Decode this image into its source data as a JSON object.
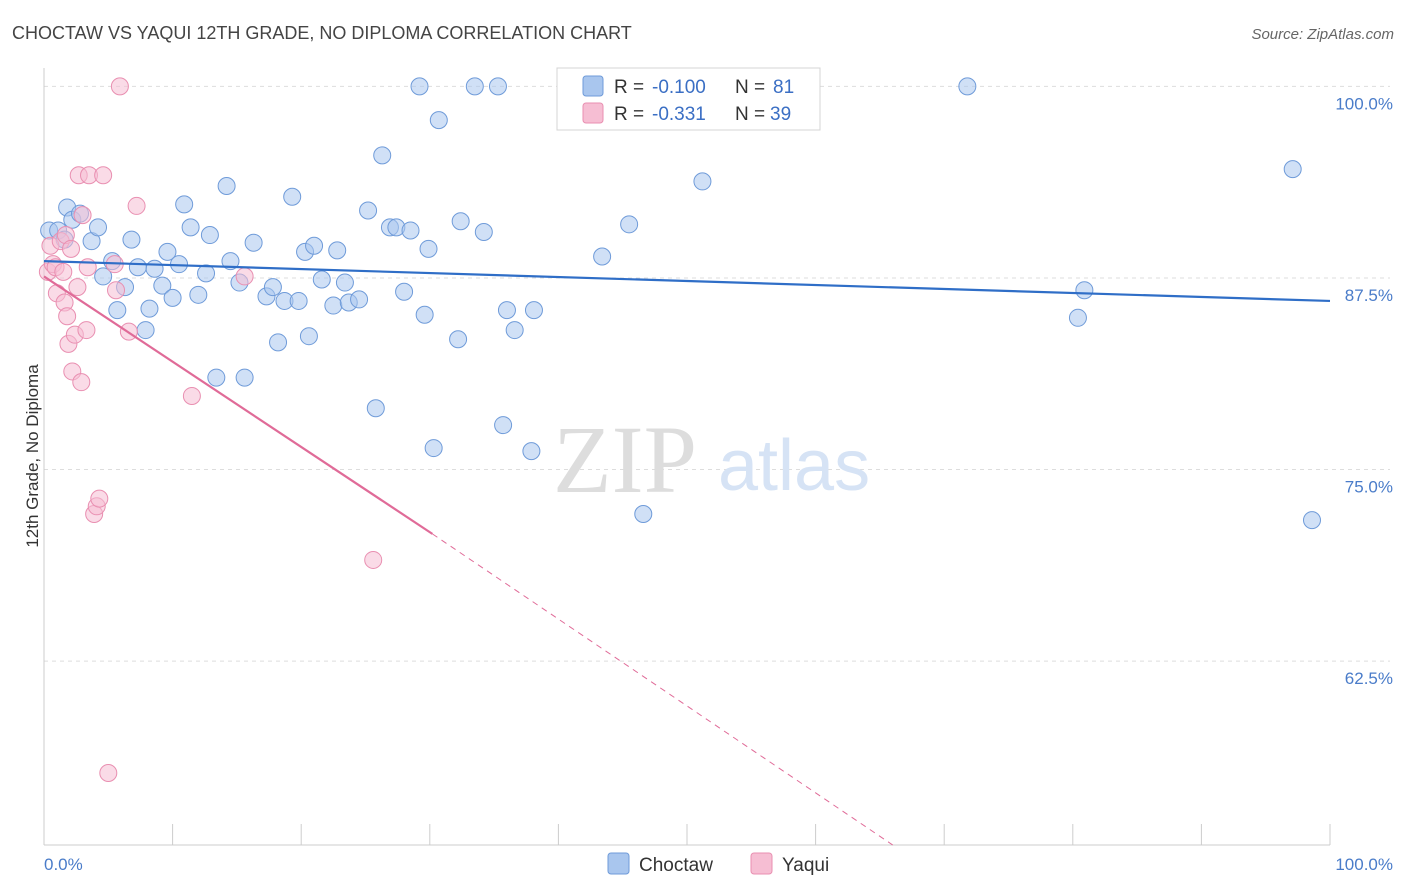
{
  "chart_data": {
    "type": "scatter",
    "title": "CHOCTAW VS YAQUI 12TH GRADE, NO DIPLOMA CORRELATION CHART",
    "source": "Source: ZipAtlas.com",
    "ylabel": "12th Grade, No Diploma",
    "xlabel": "",
    "xlim": [
      0,
      100
    ],
    "ylim": [
      50.5,
      101.2
    ],
    "yticks": [
      {
        "value": 100.0,
        "label": "100.0%"
      },
      {
        "value": 87.5,
        "label": "87.5%"
      },
      {
        "value": 75.0,
        "label": "75.0%"
      },
      {
        "value": 62.5,
        "label": "62.5%"
      }
    ],
    "xtick_labels": {
      "left": "0.0%",
      "right": "100.0%"
    },
    "watermark": {
      "zip": "ZIP",
      "atlas": "atlas"
    },
    "legend": {
      "entries": [
        {
          "r_label": "R =",
          "r_value": "-0.100",
          "n_label": "N =",
          "n_value": "81"
        },
        {
          "r_label": "R =",
          "r_value": "-0.331",
          "n_label": "N =",
          "n_value": "39"
        }
      ]
    },
    "series": [
      {
        "name": "Choctaw",
        "color": "#a9c6ee",
        "stroke": "#6f9bd9",
        "trend": {
          "x": [
            0,
            100
          ],
          "y": [
            88.6,
            86.0
          ],
          "color": "#2f6ec7"
        },
        "points": [
          [
            0.4,
            90.6
          ],
          [
            1.1,
            90.6
          ],
          [
            1.6,
            90.0
          ],
          [
            1.8,
            92.1
          ],
          [
            2.2,
            91.3
          ],
          [
            2.8,
            91.7
          ],
          [
            3.7,
            89.9
          ],
          [
            4.2,
            90.8
          ],
          [
            4.6,
            87.6
          ],
          [
            5.3,
            88.6
          ],
          [
            5.7,
            85.4
          ],
          [
            6.3,
            86.9
          ],
          [
            6.8,
            90.0
          ],
          [
            7.3,
            88.2
          ],
          [
            7.9,
            84.1
          ],
          [
            8.2,
            85.5
          ],
          [
            8.6,
            88.1
          ],
          [
            9.2,
            87.0
          ],
          [
            9.6,
            89.2
          ],
          [
            10.0,
            86.2
          ],
          [
            10.5,
            88.4
          ],
          [
            10.9,
            92.3
          ],
          [
            11.4,
            90.8
          ],
          [
            12.0,
            86.4
          ],
          [
            12.6,
            87.8
          ],
          [
            12.9,
            90.3
          ],
          [
            13.4,
            81.0
          ],
          [
            14.2,
            93.5
          ],
          [
            14.5,
            88.6
          ],
          [
            15.2,
            87.2
          ],
          [
            15.6,
            81.0
          ],
          [
            16.3,
            89.8
          ],
          [
            17.3,
            86.3
          ],
          [
            17.8,
            86.9
          ],
          [
            18.2,
            83.3
          ],
          [
            18.7,
            86.0
          ],
          [
            19.3,
            92.8
          ],
          [
            19.8,
            86.0
          ],
          [
            20.3,
            89.2
          ],
          [
            20.6,
            83.7
          ],
          [
            21.0,
            89.6
          ],
          [
            21.6,
            87.4
          ],
          [
            22.5,
            85.7
          ],
          [
            22.8,
            89.3
          ],
          [
            23.4,
            87.2
          ],
          [
            23.7,
            85.9
          ],
          [
            24.5,
            86.1
          ],
          [
            25.2,
            91.9
          ],
          [
            25.8,
            79.0
          ],
          [
            26.3,
            95.5
          ],
          [
            26.9,
            90.8
          ],
          [
            27.4,
            90.8
          ],
          [
            28.0,
            86.6
          ],
          [
            28.5,
            90.6
          ],
          [
            29.2,
            100.0
          ],
          [
            29.6,
            85.1
          ],
          [
            29.9,
            89.4
          ],
          [
            30.3,
            76.4
          ],
          [
            30.7,
            97.8
          ],
          [
            32.2,
            83.5
          ],
          [
            32.4,
            91.2
          ],
          [
            33.5,
            100.0
          ],
          [
            34.2,
            90.5
          ],
          [
            35.3,
            100.0
          ],
          [
            35.7,
            77.9
          ],
          [
            36.0,
            85.4
          ],
          [
            36.6,
            84.1
          ],
          [
            37.9,
            76.2
          ],
          [
            38.1,
            85.4
          ],
          [
            43.4,
            88.9
          ],
          [
            45.5,
            91.0
          ],
          [
            46.6,
            72.1
          ],
          [
            51.2,
            93.8
          ],
          [
            71.8,
            100.0
          ],
          [
            80.4,
            84.9
          ],
          [
            80.9,
            86.7
          ],
          [
            97.1,
            94.6
          ],
          [
            98.6,
            71.7
          ]
        ]
      },
      {
        "name": "Yaqui",
        "color": "#f6bed3",
        "stroke": "#e98fb1",
        "trend": {
          "x": [
            0,
            30.2
          ],
          "y": [
            87.6,
            70.8
          ],
          "color": "#e06b98"
        },
        "dash": {
          "x": [
            30.2,
            66.0
          ],
          "y": [
            70.8,
            50.5
          ]
        },
        "points": [
          [
            0.3,
            87.9
          ],
          [
            0.5,
            89.6
          ],
          [
            0.7,
            88.4
          ],
          [
            0.9,
            88.2
          ],
          [
            1.0,
            86.5
          ],
          [
            1.3,
            89.9
          ],
          [
            1.5,
            87.9
          ],
          [
            1.6,
            85.9
          ],
          [
            1.7,
            90.3
          ],
          [
            1.8,
            85.0
          ],
          [
            1.9,
            83.2
          ],
          [
            2.1,
            89.4
          ],
          [
            2.2,
            81.4
          ],
          [
            2.4,
            83.8
          ],
          [
            2.6,
            86.9
          ],
          [
            2.7,
            94.2
          ],
          [
            2.9,
            80.7
          ],
          [
            3.0,
            91.6
          ],
          [
            3.3,
            84.1
          ],
          [
            3.4,
            88.2
          ],
          [
            3.5,
            94.2
          ],
          [
            3.9,
            72.1
          ],
          [
            4.1,
            72.6
          ],
          [
            4.3,
            73.1
          ],
          [
            4.6,
            94.2
          ],
          [
            5.0,
            55.2
          ],
          [
            5.5,
            88.4
          ],
          [
            5.6,
            86.7
          ],
          [
            5.9,
            100.0
          ],
          [
            6.6,
            84.0
          ],
          [
            7.2,
            92.2
          ],
          [
            11.5,
            79.8
          ],
          [
            15.6,
            87.6
          ],
          [
            25.6,
            69.1
          ]
        ]
      }
    ]
  },
  "bottom_legend": [
    "Choctaw",
    "Yaqui"
  ]
}
